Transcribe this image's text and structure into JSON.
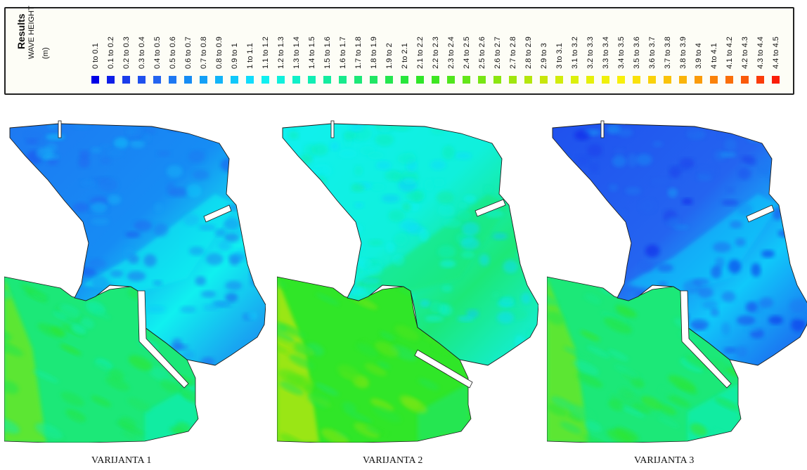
{
  "legend": {
    "title": "Results",
    "quantity": "WAVE HEIGHT",
    "unit": "(m)",
    "bins": [
      {
        "label": "0 to 0.1",
        "color": "#0000e6"
      },
      {
        "label": "0.1 to 0.2",
        "color": "#0d1ee8"
      },
      {
        "label": "0.2 to 0.3",
        "color": "#1a3ceb"
      },
      {
        "label": "0.3 to 0.4",
        "color": "#1f50ee"
      },
      {
        "label": "0.4 to 0.5",
        "color": "#2464f0"
      },
      {
        "label": "0.5 to 0.6",
        "color": "#1e78f2"
      },
      {
        "label": "0.6 to 0.7",
        "color": "#168cf4"
      },
      {
        "label": "0.7 to 0.8",
        "color": "#14a0f6"
      },
      {
        "label": "0.8 to 0.9",
        "color": "#12b4f8"
      },
      {
        "label": "0.9 to 1",
        "color": "#10c8fa"
      },
      {
        "label": "1 to 1.1",
        "color": "#10dcfc"
      },
      {
        "label": "1.1 to 1.2",
        "color": "#10f0f0"
      },
      {
        "label": "1.2 to 1.3",
        "color": "#10f0dc"
      },
      {
        "label": "1.3 to 1.4",
        "color": "#10f0c8"
      },
      {
        "label": "1.4 to 1.5",
        "color": "#10eeb4"
      },
      {
        "label": "1.5 to 1.6",
        "color": "#14eca0"
      },
      {
        "label": "1.6 to 1.7",
        "color": "#18ea8c"
      },
      {
        "label": "1.7 to 1.8",
        "color": "#1ce878"
      },
      {
        "label": "1.8 to 1.9",
        "color": "#20e664"
      },
      {
        "label": "1.9 to 2",
        "color": "#24e650"
      },
      {
        "label": "2 to 2.1",
        "color": "#28e63c"
      },
      {
        "label": "2.1 to 2.2",
        "color": "#30e628"
      },
      {
        "label": "2.2 to 2.3",
        "color": "#3ee620"
      },
      {
        "label": "2.3 to 2.4",
        "color": "#50e61c"
      },
      {
        "label": "2.4 to 2.5",
        "color": "#64e618"
      },
      {
        "label": "2.5 to 2.6",
        "color": "#78e614"
      },
      {
        "label": "2.6 to 2.7",
        "color": "#8ce610"
      },
      {
        "label": "2.7 to 2.8",
        "color": "#a0e60e"
      },
      {
        "label": "2.8 to 2.9",
        "color": "#b4e60c"
      },
      {
        "label": "2.9 to 3",
        "color": "#c8e60a"
      },
      {
        "label": "3 to 3.1",
        "color": "#d2ec0a"
      },
      {
        "label": "3.1 to 3.2",
        "color": "#dcf00a"
      },
      {
        "label": "3.2 to 3.3",
        "color": "#e6f00a"
      },
      {
        "label": "3.3 to 3.4",
        "color": "#f0f00a"
      },
      {
        "label": "3.4 to 3.5",
        "color": "#f8f00a"
      },
      {
        "label": "3.5 to 3.6",
        "color": "#fae10a"
      },
      {
        "label": "3.6 to 3.7",
        "color": "#fad20a"
      },
      {
        "label": "3.7 to 3.8",
        "color": "#fac30a"
      },
      {
        "label": "3.8 to 3.9",
        "color": "#fab40a"
      },
      {
        "label": "3.9 to 4",
        "color": "#fa9b0a"
      },
      {
        "label": "4 to 4.1",
        "color": "#fa820a"
      },
      {
        "label": "4.1 to 4.2",
        "color": "#fa6e0a"
      },
      {
        "label": "4.2 to 4.3",
        "color": "#fa5a0a"
      },
      {
        "label": "4.3 to 4.4",
        "color": "#fa3c0a"
      },
      {
        "label": "4.4 to 4.5",
        "color": "#fa1e0a"
      }
    ]
  },
  "panels": [
    {
      "caption": "VARIJANTA 1",
      "outer_bin": 17,
      "harbor_bin": 5,
      "gap_bin": 11
    },
    {
      "caption": "VARIJANTA 2",
      "outer_bin": 21,
      "harbor_bin": 11,
      "gap_bin": 17
    },
    {
      "caption": "VARIJANTA 3",
      "outer_bin": 17,
      "harbor_bin": 3,
      "gap_bin": 9
    }
  ]
}
